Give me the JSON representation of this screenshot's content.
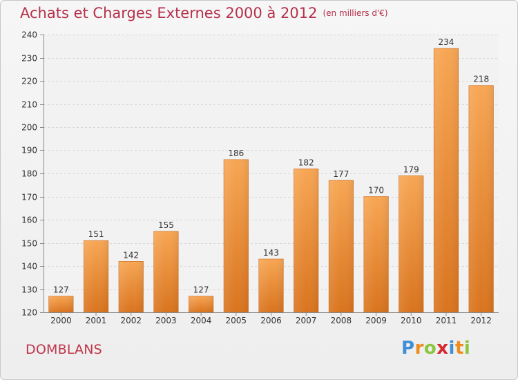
{
  "title": "Achats et Charges Externes 2000 à 2012",
  "unit": "(en milliers d'€)",
  "place": "DOMBLANS",
  "logo": "Proxiti",
  "colors": {
    "bar_top": "#f7a654",
    "bar_bottom": "#d9741e",
    "title": "#b5304a"
  },
  "chart_data": {
    "type": "bar",
    "title": "Achats et Charges Externes 2000 à 2012",
    "subtitle": "(en milliers d'€)",
    "categories": [
      "2000",
      "2001",
      "2002",
      "2003",
      "2004",
      "2005",
      "2006",
      "2007",
      "2008",
      "2009",
      "2010",
      "2011",
      "2012"
    ],
    "values": [
      127,
      151,
      142,
      155,
      127,
      186,
      143,
      182,
      177,
      170,
      179,
      234,
      218
    ],
    "ylim": [
      120,
      240
    ],
    "yticks": [
      120,
      130,
      140,
      150,
      160,
      170,
      180,
      190,
      200,
      210,
      220,
      230,
      240
    ],
    "grid": true
  }
}
